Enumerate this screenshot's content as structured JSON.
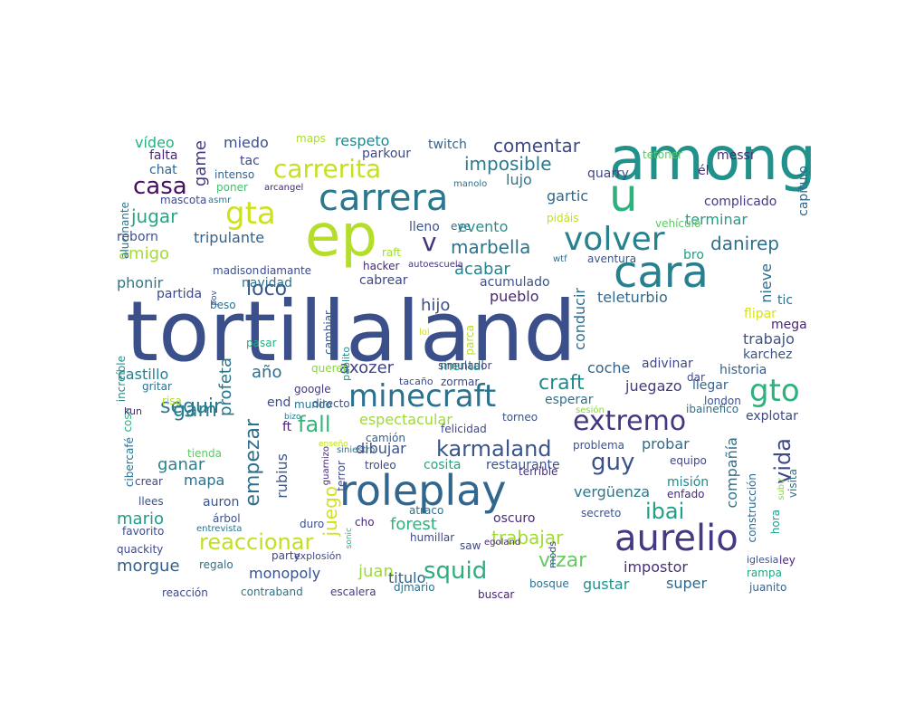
{
  "wordcloud": {
    "words": [
      {
        "text": "tortillaland",
        "color": "#3b4f8a"
      },
      {
        "text": "among",
        "color": "#21918c"
      },
      {
        "text": "ep",
        "color": "#b5de2b"
      },
      {
        "text": "carrera",
        "color": "#2a788e"
      },
      {
        "text": "cara",
        "color": "#27808e"
      },
      {
        "text": "roleplay",
        "color": "#31668e"
      },
      {
        "text": "u",
        "color": "#2db27d"
      },
      {
        "text": "minecraft",
        "color": "#2c728e"
      },
      {
        "text": "aurelio",
        "color": "#443983"
      },
      {
        "text": "volver",
        "color": "#26828e"
      },
      {
        "text": "gta",
        "color": "#cde11d"
      },
      {
        "text": "carrerita",
        "color": "#c8e020"
      },
      {
        "text": "extremo",
        "color": "#453781"
      },
      {
        "text": "gto",
        "color": "#2db27d"
      },
      {
        "text": "karmaland",
        "color": "#3a548c"
      },
      {
        "text": "squid",
        "color": "#2ab07f"
      },
      {
        "text": "reaccionar",
        "color": "#c2df23"
      },
      {
        "text": "v",
        "color": "#46337e"
      },
      {
        "text": "ibai",
        "color": "#1fa088"
      },
      {
        "text": "guy",
        "color": "#3b528b"
      },
      {
        "text": "fall",
        "color": "#35b779"
      },
      {
        "text": "casa",
        "color": "#471063"
      },
      {
        "text": "imposible",
        "color": "#297b8e"
      },
      {
        "text": "marbella",
        "color": "#2c738e"
      },
      {
        "text": "comentar",
        "color": "#3e4a89"
      },
      {
        "text": "vida",
        "color": "#3e4989"
      },
      {
        "text": "empezar",
        "color": "#2e6f8e"
      },
      {
        "text": "seguir",
        "color": "#2a768e"
      },
      {
        "text": "danirep",
        "color": "#2d708e"
      },
      {
        "text": "loco",
        "color": "#39568c"
      },
      {
        "text": "juego",
        "color": "#d2e21b"
      },
      {
        "text": "craft",
        "color": "#23898e"
      },
      {
        "text": "trabajar",
        "color": "#a2da37"
      },
      {
        "text": "vizar",
        "color": "#65cb5e"
      },
      {
        "text": "juan",
        "color": "#9dd93b"
      },
      {
        "text": "jugar",
        "color": "#22a884"
      },
      {
        "text": "gam",
        "color": "#277f8e"
      },
      {
        "text": "amigo",
        "color": "#a5db36"
      },
      {
        "text": "mario",
        "color": "#1e9d89"
      },
      {
        "text": "morgue",
        "color": "#34608d"
      },
      {
        "text": "game",
        "color": "#443a83"
      },
      {
        "text": "axozer",
        "color": "#414487"
      },
      {
        "text": "hijo",
        "color": "#3d4d8a"
      },
      {
        "text": "ganar",
        "color": "#27808e"
      },
      {
        "text": "profeta",
        "color": "#2a768e"
      },
      {
        "text": "acabar",
        "color": "#25838e"
      },
      {
        "text": "año",
        "color": "#2e6e8e"
      },
      {
        "text": "respeto",
        "color": "#24878e"
      },
      {
        "text": "miedo",
        "color": "#3d4e8a"
      },
      {
        "text": "evento",
        "color": "#20928c"
      },
      {
        "text": "espectacular",
        "color": "#a0da39"
      },
      {
        "text": "impostor",
        "color": "#46307e"
      },
      {
        "text": "forest",
        "color": "#2eb37c"
      },
      {
        "text": "gartic",
        "color": "#31688e"
      },
      {
        "text": "terminar",
        "color": "#1f9e89"
      },
      {
        "text": "monopoly",
        "color": "#3a538b"
      },
      {
        "text": "rubius",
        "color": "#39568c"
      },
      {
        "text": "probar",
        "color": "#2e6e8e"
      },
      {
        "text": "dibujar",
        "color": "#3b518b"
      },
      {
        "text": "compañía",
        "color": "#2c718e"
      },
      {
        "text": "vídeo",
        "color": "#28ae80"
      },
      {
        "text": "mapa",
        "color": "#2d718e"
      },
      {
        "text": "vergüenza",
        "color": "#2a788e"
      },
      {
        "text": "nieve",
        "color": "#2f6c8e"
      },
      {
        "text": "juegazo",
        "color": "#443983"
      },
      {
        "text": "conducir",
        "color": "#2f6b8e"
      },
      {
        "text": "pueblo",
        "color": "#482878"
      },
      {
        "text": "trabajo",
        "color": "#3b528b"
      },
      {
        "text": "coche",
        "color": "#33628d"
      },
      {
        "text": "castillo",
        "color": "#287d8e"
      },
      {
        "text": "navidad",
        "color": "#2c728e"
      },
      {
        "text": "phonir",
        "color": "#297a8e"
      },
      {
        "text": "reborn",
        "color": "#3b528b"
      },
      {
        "text": "tripulante",
        "color": "#33638d"
      },
      {
        "text": "teleturbio",
        "color": "#30698e"
      },
      {
        "text": "lujo",
        "color": "#2a788e"
      },
      {
        "text": "titulo",
        "color": "#33638d"
      },
      {
        "text": "super",
        "color": "#30698e"
      },
      {
        "text": "gustar",
        "color": "#21918c"
      },
      {
        "text": "auron",
        "color": "#3a548c"
      },
      {
        "text": "misión",
        "color": "#24878e"
      },
      {
        "text": "cosita",
        "color": "#21a685"
      },
      {
        "text": "restaurante",
        "color": "#3b528b"
      },
      {
        "text": "end",
        "color": "#3e4c8a"
      },
      {
        "text": "ft",
        "color": "#482475"
      },
      {
        "text": "oscuro",
        "color": "#472d7b"
      },
      {
        "text": "mental",
        "color": "#1fa088"
      },
      {
        "text": "simulador",
        "color": "#404688"
      },
      {
        "text": "esperar",
        "color": "#2d708e"
      },
      {
        "text": "explotar",
        "color": "#3e4a89"
      },
      {
        "text": "historia",
        "color": "#34608d"
      },
      {
        "text": "llegar",
        "color": "#32658e"
      },
      {
        "text": "karchez",
        "color": "#3b528b"
      },
      {
        "text": "complicado",
        "color": "#443a83"
      },
      {
        "text": "mega",
        "color": "#482475"
      },
      {
        "text": "tic",
        "color": "#2e6e8e"
      },
      {
        "text": "flipar",
        "color": "#d8e219"
      },
      {
        "text": "adivinar",
        "color": "#3e4989"
      },
      {
        "text": "bro",
        "color": "#1fa088"
      },
      {
        "text": "dar",
        "color": "#3e4989"
      },
      {
        "text": "él",
        "color": "#46337e"
      },
      {
        "text": "messi",
        "color": "#482878"
      },
      {
        "text": "capítulo",
        "color": "#31688e"
      },
      {
        "text": "vehículo",
        "color": "#5ec962"
      },
      {
        "text": "tetoner",
        "color": "#5ec962"
      },
      {
        "text": "quarry",
        "color": "#404688"
      },
      {
        "text": "pidáis",
        "color": "#bddf26"
      },
      {
        "text": "aventura",
        "color": "#3a548c"
      },
      {
        "text": "wtf",
        "color": "#2e6f8e"
      },
      {
        "text": "acumulado",
        "color": "#3b528b"
      },
      {
        "text": "cabrear",
        "color": "#3f4788"
      },
      {
        "text": "hacker",
        "color": "#482878"
      },
      {
        "text": "autoescuela",
        "color": "#46337e"
      },
      {
        "text": "raft",
        "color": "#a2da37"
      },
      {
        "text": "eye",
        "color": "#2d708e"
      },
      {
        "text": "lleno",
        "color": "#3b528b"
      },
      {
        "text": "manolo",
        "color": "#2c738e"
      },
      {
        "text": "twitch",
        "color": "#33628d"
      },
      {
        "text": "parkour",
        "color": "#3e4989"
      },
      {
        "text": "maps",
        "color": "#aadc32"
      },
      {
        "text": "tac",
        "color": "#3e4989"
      },
      {
        "text": "intenso",
        "color": "#33638d"
      },
      {
        "text": "poner",
        "color": "#44bf70"
      },
      {
        "text": "asmr",
        "color": "#2c738e"
      },
      {
        "text": "arcangel",
        "color": "#482475"
      },
      {
        "text": "mascota",
        "color": "#3e4a89"
      },
      {
        "text": "chat",
        "color": "#32658e"
      },
      {
        "text": "falta",
        "color": "#482878"
      },
      {
        "text": "alucinante",
        "color": "#2a788e"
      },
      {
        "text": "madison",
        "color": "#3b528b"
      },
      {
        "text": "diamante",
        "color": "#3e4989"
      },
      {
        "text": "partida",
        "color": "#3e4989"
      },
      {
        "text": "beso",
        "color": "#2c718e"
      },
      {
        "text": "pov",
        "color": "#3b528b"
      },
      {
        "text": "cambiar",
        "color": "#3a548c"
      },
      {
        "text": "pablito",
        "color": "#21918c"
      },
      {
        "text": "parca",
        "color": "#b8de29"
      },
      {
        "text": "lol",
        "color": "#d2e21b"
      },
      {
        "text": "increíble",
        "color": "#21918c"
      },
      {
        "text": "pasar",
        "color": "#28ae80"
      },
      {
        "text": "querer",
        "color": "#8bd646"
      },
      {
        "text": "tacaño",
        "color": "#3e4989"
      },
      {
        "text": "zormar",
        "color": "#3f4788"
      },
      {
        "text": "google",
        "color": "#443983"
      },
      {
        "text": "directo",
        "color": "#3b528b"
      },
      {
        "text": "mundo",
        "color": "#2c728e"
      },
      {
        "text": "gritar",
        "color": "#2c728e"
      },
      {
        "text": "risa",
        "color": "#addc30"
      },
      {
        "text": "cosa",
        "color": "#2db27d"
      },
      {
        "text": "kun",
        "color": "#482878"
      },
      {
        "text": "bizo",
        "color": "#287d8e"
      },
      {
        "text": "sesión",
        "color": "#8bd646"
      },
      {
        "text": "ibainefico",
        "color": "#2c718e"
      },
      {
        "text": "london",
        "color": "#3b528b"
      },
      {
        "text": "torneo",
        "color": "#3b528b"
      },
      {
        "text": "felicidad",
        "color": "#3e4989"
      },
      {
        "text": "camión",
        "color": "#34608d"
      },
      {
        "text": "enseño",
        "color": "#c2df23"
      },
      {
        "text": "guarnizo",
        "color": "#482878"
      },
      {
        "text": "troleo",
        "color": "#3e4989"
      },
      {
        "text": "terror",
        "color": "#3e4989"
      },
      {
        "text": "terrible",
        "color": "#46337e"
      },
      {
        "text": "problema",
        "color": "#3b528b"
      },
      {
        "text": "equipo",
        "color": "#3f4788"
      },
      {
        "text": "enfado",
        "color": "#482878"
      },
      {
        "text": "construcción",
        "color": "#31688e"
      },
      {
        "text": "subir",
        "color": "#8bd646"
      },
      {
        "text": "visita",
        "color": "#2c718e"
      },
      {
        "text": "hora",
        "color": "#1f9e89"
      },
      {
        "text": "ley",
        "color": "#482475"
      },
      {
        "text": "rampa",
        "color": "#21a685"
      },
      {
        "text": "iglesia",
        "color": "#3b528b"
      },
      {
        "text": "juanito",
        "color": "#32658e"
      },
      {
        "text": "bosque",
        "color": "#2c728e"
      },
      {
        "text": "buscar",
        "color": "#482475"
      },
      {
        "text": "djmario",
        "color": "#2c718e"
      },
      {
        "text": "escalera",
        "color": "#443983"
      },
      {
        "text": "contraband",
        "color": "#2c728e"
      },
      {
        "text": "reacción",
        "color": "#3e4989"
      },
      {
        "text": "regalo",
        "color": "#2c728e"
      },
      {
        "text": "quackity",
        "color": "#3e4989"
      },
      {
        "text": "favorito",
        "color": "#3e4989"
      },
      {
        "text": "entrevista",
        "color": "#2c718e"
      },
      {
        "text": "árbol",
        "color": "#3b528b"
      },
      {
        "text": "crear",
        "color": "#3e4989"
      },
      {
        "text": "llees",
        "color": "#3b528b"
      },
      {
        "text": "cibercafé",
        "color": "#2c718e"
      },
      {
        "text": "tienda",
        "color": "#5ec962"
      },
      {
        "text": "duro",
        "color": "#3b528b"
      },
      {
        "text": "cho",
        "color": "#482878"
      },
      {
        "text": "atraco",
        "color": "#2c728e"
      },
      {
        "text": "humillar",
        "color": "#3e4989"
      },
      {
        "text": "saw",
        "color": "#3e4989"
      },
      {
        "text": "egoland",
        "color": "#482878"
      },
      {
        "text": "secreto",
        "color": "#3b528b"
      },
      {
        "text": "party",
        "color": "#3e4989"
      },
      {
        "text": "explosión",
        "color": "#3e4989"
      },
      {
        "text": "mods",
        "color": "#3b528b"
      },
      {
        "text": "sonic",
        "color": "#2db27d"
      },
      {
        "text": "siniestro",
        "color": "#2c718e"
      }
    ]
  }
}
